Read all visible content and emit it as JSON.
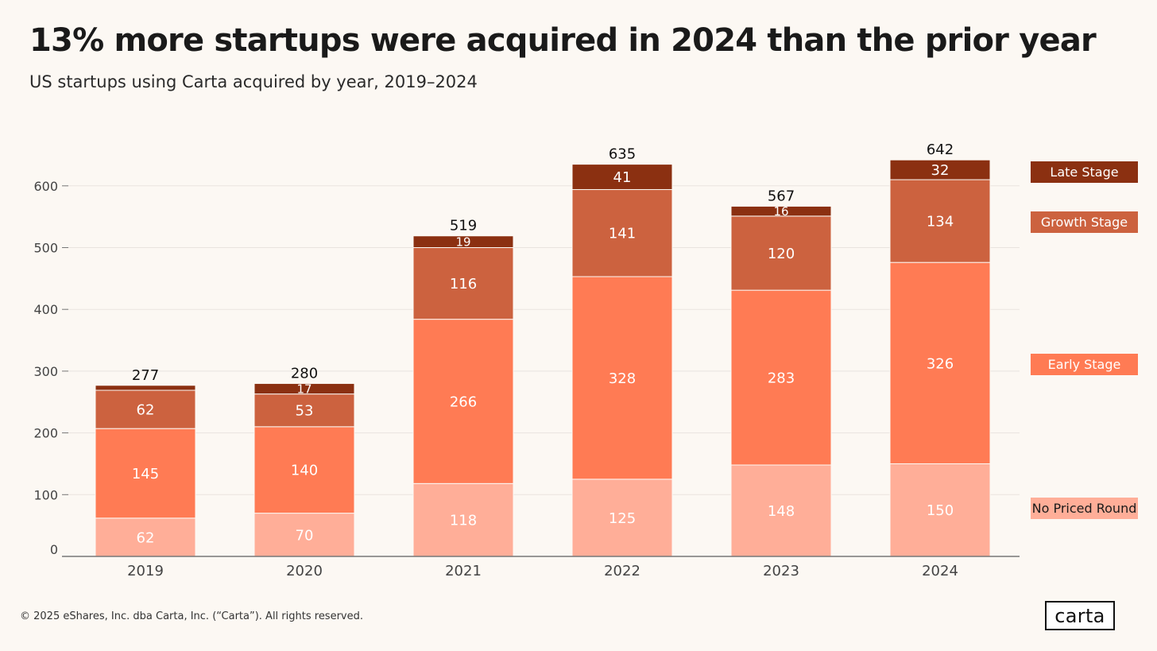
{
  "header": {
    "title": "13% more startups were acquired in 2024 than the prior year",
    "subtitle": "US startups using Carta acquired by year, 2019–2024"
  },
  "footer": {
    "copyright": "© 2025 eShares, Inc. dba Carta, Inc. (“Carta”). All rights reserved.",
    "logo_text": "carta"
  },
  "colors": {
    "background": "#fcf8f3",
    "no_priced_round": "#ffae98",
    "early_stage": "#ff7b54",
    "growth_stage": "#cc623f",
    "late_stage": "#8b3011",
    "gridline": "#e9e4df",
    "axis": "#777777"
  },
  "chart_data": {
    "type": "bar",
    "stacked": true,
    "title": "13% more startups were acquired in 2024 than the prior year",
    "subtitle": "US startups using Carta acquired by year, 2019–2024",
    "xlabel": "",
    "ylabel": "",
    "ylim": [
      0,
      650
    ],
    "yticks": [
      0,
      100,
      200,
      300,
      400,
      500,
      600
    ],
    "grid": true,
    "legend_position": "right",
    "categories": [
      "2019",
      "2020",
      "2021",
      "2022",
      "2023",
      "2024"
    ],
    "series": [
      {
        "name": "No Priced Round",
        "color": "#ffae98",
        "values": [
          62,
          70,
          118,
          125,
          148,
          150
        ],
        "labels": [
          "62",
          "70",
          "118",
          "125",
          "148",
          "150"
        ]
      },
      {
        "name": "Early Stage",
        "color": "#ff7b54",
        "values": [
          145,
          140,
          266,
          328,
          283,
          326
        ],
        "labels": [
          "145",
          "140",
          "266",
          "328",
          "283",
          "326"
        ]
      },
      {
        "name": "Growth Stage",
        "color": "#cc623f",
        "values": [
          62,
          53,
          116,
          141,
          120,
          134
        ],
        "labels": [
          "62",
          "53",
          "116",
          "141",
          "120",
          "134"
        ]
      },
      {
        "name": "Late Stage",
        "color": "#8b3011",
        "values": [
          8,
          17,
          19,
          41,
          16,
          32
        ],
        "labels": [
          "",
          "17",
          "19",
          "41",
          "16",
          "32"
        ]
      }
    ],
    "totals": [
      277,
      280,
      519,
      635,
      567,
      642
    ]
  }
}
